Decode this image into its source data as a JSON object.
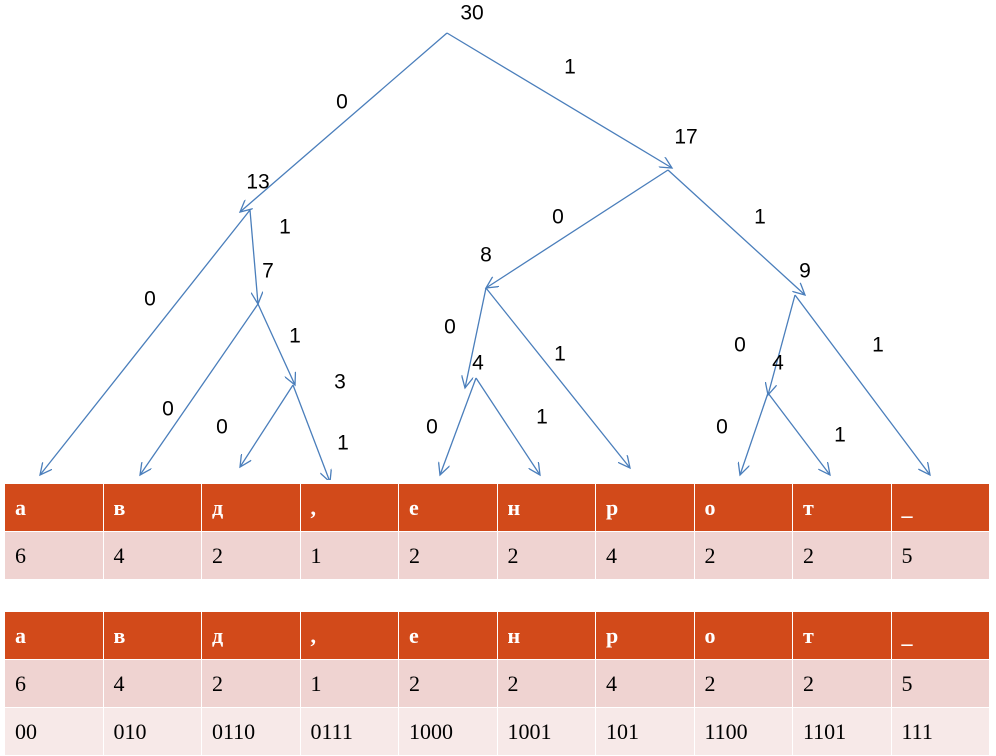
{
  "tree": {
    "nodes": [
      "30",
      "13",
      "17",
      "7",
      "8",
      "9",
      "3",
      "4",
      "4"
    ],
    "edges": [
      "0",
      "1",
      "0",
      "1",
      "0",
      "1",
      "0",
      "1",
      "0",
      "1",
      "0",
      "1",
      "0",
      "1",
      "0",
      "1",
      "0",
      "1"
    ]
  },
  "tables": [
    {
      "header": [
        "а",
        "в",
        "д",
        ",",
        "е",
        "н",
        "р",
        "о",
        "т",
        "_"
      ],
      "rows": [
        [
          "6",
          "4",
          "2",
          "1",
          "2",
          "2",
          "4",
          "2",
          "2",
          "5"
        ]
      ]
    },
    {
      "header": [
        "а",
        "в",
        "д",
        ",",
        "е",
        "н",
        "р",
        "о",
        "т",
        "_"
      ],
      "rows": [
        [
          "6",
          "4",
          "2",
          "1",
          "2",
          "2",
          "4",
          "2",
          "2",
          "5"
        ],
        [
          "00",
          "010",
          "0110",
          "0111",
          "1000",
          "1001",
          "101",
          "1100",
          "1101",
          "111"
        ]
      ]
    }
  ]
}
